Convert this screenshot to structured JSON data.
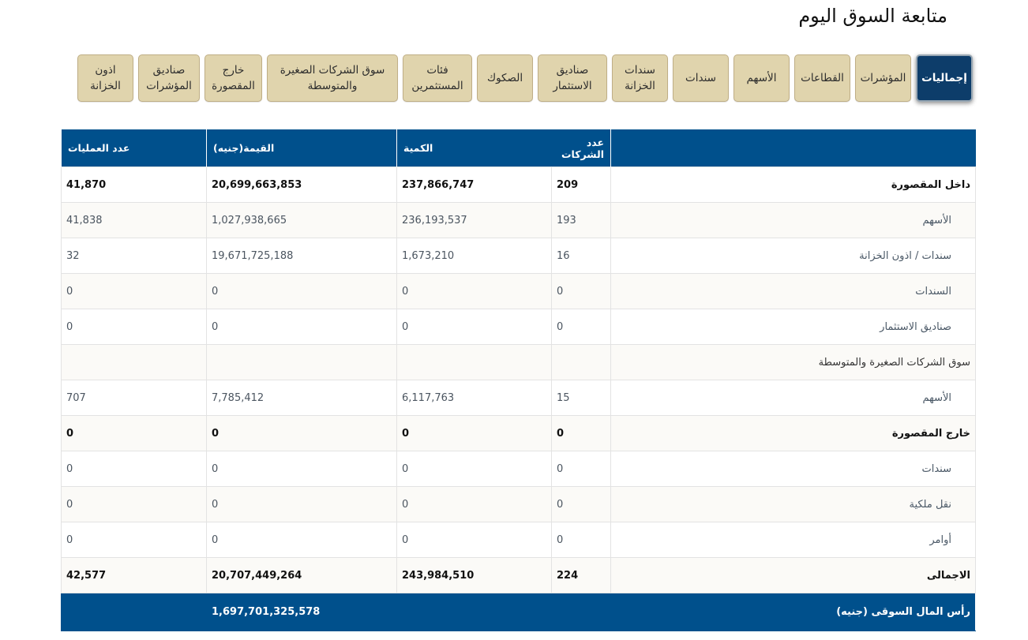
{
  "page": {
    "title": "متابعة السوق اليوم"
  },
  "tabs": [
    {
      "label": "إجماليات",
      "active": true
    },
    {
      "label": "المؤشرات",
      "active": false
    },
    {
      "label": "القطاعات",
      "active": false
    },
    {
      "label": "الأسهم",
      "active": false
    },
    {
      "label": "سندات",
      "active": false
    },
    {
      "label": "سندات\nالخزانة",
      "active": false
    },
    {
      "label": "صناديق\nالاستثمار",
      "active": false
    },
    {
      "label": "الصكوك",
      "active": false
    },
    {
      "label": "فئات\nالمستثمرين",
      "active": false
    },
    {
      "label": "سوق الشركات الصغيرة\nوالمتوسطة",
      "active": false
    },
    {
      "label": "خارج\nالمقصورة",
      "active": false
    },
    {
      "label": "صناديق\nالمؤشرات",
      "active": false
    },
    {
      "label": "اذون\nالخزانة",
      "active": false
    }
  ],
  "table": {
    "headers": {
      "companies": "عدد الشركات",
      "quantity": "الكمية",
      "value": "القيمة(جنيه)",
      "trades": "عدد العمليات"
    },
    "rows": [
      {
        "label": "داخل المقصورة",
        "companies": "209",
        "quantity": "237,866,747",
        "value": "20,699,663,853",
        "trades": "41,870"
      },
      {
        "label": "الأسهم",
        "companies": "193",
        "quantity": "236,193,537",
        "value": "1,027,938,665",
        "trades": "41,838"
      },
      {
        "label": "سندات / اذون الخزانة",
        "companies": "16",
        "quantity": "1,673,210",
        "value": "19,671,725,188",
        "trades": "32"
      },
      {
        "label": "السندات",
        "companies": "0",
        "quantity": "0",
        "value": "0",
        "trades": "0"
      },
      {
        "label": "صناديق الاستثمار",
        "companies": "0",
        "quantity": "0",
        "value": "0",
        "trades": "0"
      },
      {
        "label": "سوق الشركات الصغيرة والمتوسطة",
        "companies": "",
        "quantity": "",
        "value": "",
        "trades": ""
      },
      {
        "label": "الأسهم",
        "companies": "15",
        "quantity": "6,117,763",
        "value": "7,785,412",
        "trades": "707"
      },
      {
        "label": "خارج المقصورة",
        "companies": "0",
        "quantity": "0",
        "value": "0",
        "trades": "0"
      },
      {
        "label": "سندات",
        "companies": "0",
        "quantity": "0",
        "value": "0",
        "trades": "0"
      },
      {
        "label": "نقل ملكية",
        "companies": "0",
        "quantity": "0",
        "value": "0",
        "trades": "0"
      },
      {
        "label": "أوامر",
        "companies": "0",
        "quantity": "0",
        "value": "0",
        "trades": "0"
      },
      {
        "label": "الاجمالى",
        "companies": "224",
        "quantity": "243,984,510",
        "value": "20,707,449,264",
        "trades": "42,577"
      }
    ],
    "footer": {
      "label": "رأس المال السوقى (جنيه)",
      "value": "1,697,701,325,578"
    }
  },
  "colors": {
    "header_bg": "#00508c",
    "tab_bg": "#e0d4ad",
    "tab_active_bg": "#0d3d6a"
  }
}
